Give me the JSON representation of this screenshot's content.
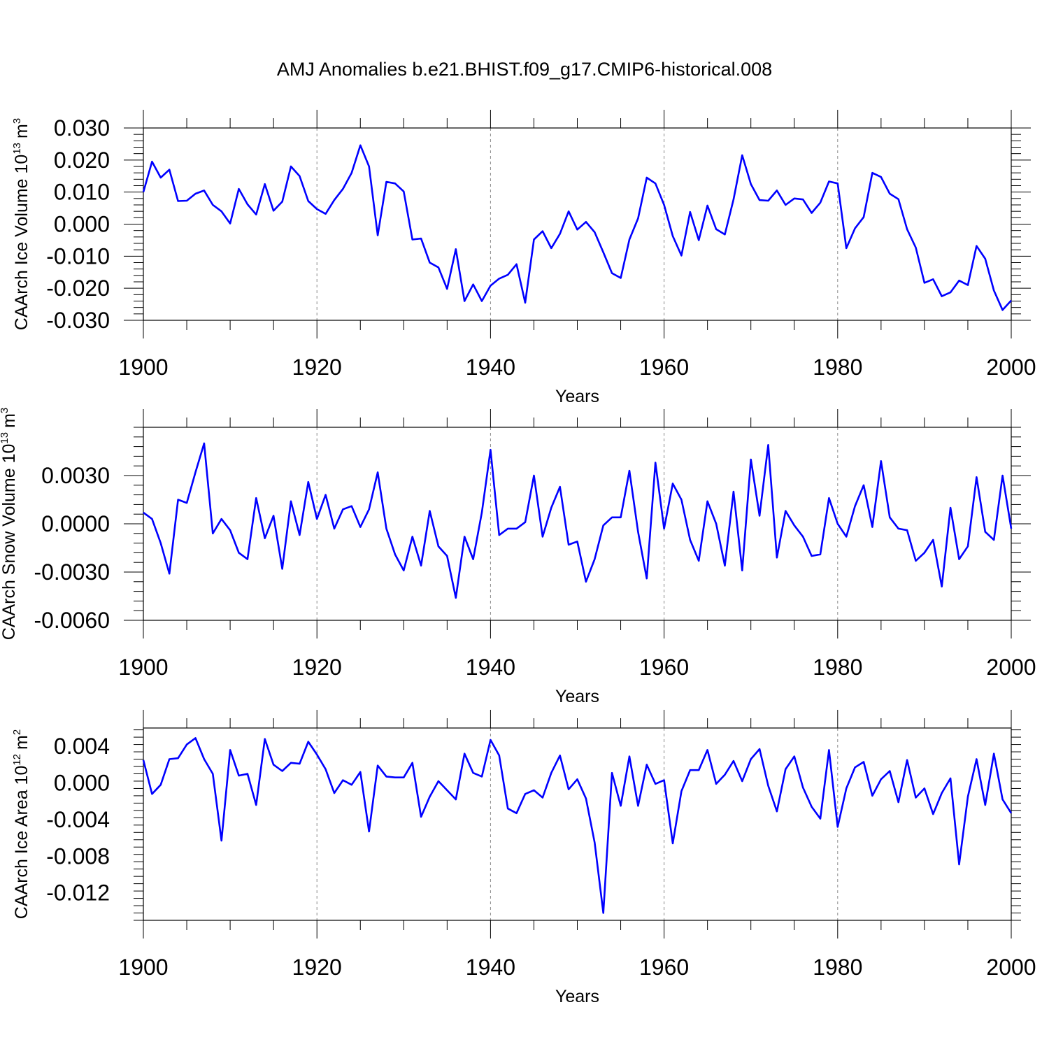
{
  "title": "AMJ Anomalies b.e21.BHIST.f09_g17.CMIP6-historical.008",
  "colors": {
    "series": "#0000ff",
    "axis": "#000000",
    "grid": "#888888"
  },
  "chart_data": [
    {
      "type": "line",
      "ylabel": "CAArch Ice Volume 10",
      "ylabel_sup": "13",
      "ylabel_unit": "m",
      "ylabel_unit_sup": "3",
      "xlabel": "Years",
      "xlim": [
        1900,
        2000
      ],
      "ylim": [
        -0.03,
        0.03
      ],
      "yticks": [
        -0.03,
        -0.02,
        -0.01,
        0.0,
        0.01,
        0.02,
        0.03
      ],
      "ytick_labels": [
        "-0.030",
        "-0.020",
        "-0.010",
        "0.000",
        "0.010",
        "0.020",
        "0.030"
      ],
      "xticks": [
        1900,
        1920,
        1940,
        1960,
        1980,
        2000
      ],
      "xtick_labels": [
        "1900",
        "1920",
        "1940",
        "1960",
        "1980",
        "2000"
      ],
      "grid_x": [
        1920,
        1940,
        1960,
        1980
      ],
      "x_start": 1900,
      "values": [
        0.01,
        0.0195,
        0.0145,
        0.017,
        0.0072,
        0.0073,
        0.0095,
        0.0105,
        0.006,
        0.004,
        0.0002,
        0.011,
        0.0062,
        0.003,
        0.0125,
        0.0042,
        0.007,
        0.018,
        0.015,
        0.0072,
        0.0047,
        0.0032,
        0.0075,
        0.011,
        0.016,
        0.0246,
        0.018,
        -0.0035,
        0.0132,
        0.0127,
        0.0102,
        -0.0048,
        -0.0045,
        -0.012,
        -0.0135,
        -0.0202,
        -0.0078,
        -0.024,
        -0.0188,
        -0.024,
        -0.0192,
        -0.017,
        -0.0158,
        -0.0125,
        -0.0245,
        -0.0048,
        -0.0022,
        -0.0075,
        -0.003,
        0.004,
        -0.0017,
        0.0007,
        -0.0025,
        -0.0088,
        -0.0153,
        -0.0168,
        -0.0048,
        0.0018,
        0.0145,
        0.0127,
        0.006,
        -0.0037,
        -0.0098,
        0.0038,
        -0.005,
        0.0058,
        -0.0016,
        -0.0032,
        0.0077,
        0.0215,
        0.0125,
        0.0075,
        0.0073,
        0.0105,
        0.006,
        0.008,
        0.0077,
        0.0035,
        0.0067,
        0.0133,
        0.0127,
        -0.0075,
        -0.0013,
        0.0022,
        0.016,
        0.0147,
        0.0095,
        0.0078,
        -0.0016,
        -0.0073,
        -0.0183,
        -0.0172,
        -0.0225,
        -0.0213,
        -0.0176,
        -0.019,
        -0.0068,
        -0.0108,
        -0.0207,
        -0.0268,
        -0.0238
      ]
    },
    {
      "type": "line",
      "ylabel": "CAArch Snow Volume 10",
      "ylabel_sup": "13",
      "ylabel_unit": "m",
      "ylabel_unit_sup": "3",
      "xlabel": "Years",
      "xlim": [
        1900,
        2000
      ],
      "ylim": [
        -0.006,
        0.006
      ],
      "yticks": [
        -0.006,
        -0.003,
        0.0,
        0.003
      ],
      "ytick_labels": [
        "-0.0060",
        "-0.0030",
        "0.0000",
        "0.0030"
      ],
      "xticks": [
        1900,
        1920,
        1940,
        1960,
        1980,
        2000
      ],
      "xtick_labels": [
        "1900",
        "1920",
        "1940",
        "1960",
        "1980",
        "2000"
      ],
      "grid_x": [
        1920,
        1940,
        1960,
        1980
      ],
      "x_start": 1900,
      "values": [
        0.0007,
        0.0003,
        -0.0012,
        -0.0031,
        0.0015,
        0.0013,
        0.0032,
        0.005,
        -0.0006,
        0.0003,
        -0.0004,
        -0.0018,
        -0.0022,
        0.0016,
        -0.0009,
        0.0005,
        -0.0028,
        0.0014,
        -0.0007,
        0.0026,
        0.0003,
        0.0018,
        -0.0003,
        0.0009,
        0.0011,
        -0.0002,
        0.0009,
        0.0032,
        -0.0003,
        -0.0019,
        -0.0029,
        -0.0008,
        -0.0026,
        0.0008,
        -0.0014,
        -0.002,
        -0.0046,
        -0.0008,
        -0.0022,
        0.0007,
        0.0046,
        -0.0007,
        -0.0003,
        -0.0003,
        0.0001,
        0.003,
        -0.0008,
        0.001,
        0.0023,
        -0.0013,
        -0.0011,
        -0.0036,
        -0.0022,
        -0.0001,
        0.0004,
        0.0004,
        0.0033,
        -0.0005,
        -0.0034,
        0.0038,
        -0.0003,
        0.0025,
        0.0015,
        -0.001,
        -0.0023,
        0.0014,
        0.0,
        -0.0026,
        0.002,
        -0.0029,
        0.004,
        0.0005,
        0.0049,
        -0.0021,
        0.0008,
        -0.0001,
        -0.0008,
        -0.002,
        -0.0019,
        0.0016,
        0.0,
        -0.0008,
        0.0011,
        0.0024,
        -0.0002,
        0.0039,
        0.0004,
        -0.0003,
        -0.0004,
        -0.0023,
        -0.0018,
        -0.001,
        -0.0039,
        0.001,
        -0.0022,
        -0.0014,
        0.0029,
        -0.0005,
        -0.001,
        0.003,
        -0.0003
      ]
    },
    {
      "type": "line",
      "ylabel": "CAArch Ice Area 10",
      "ylabel_sup": "12",
      "ylabel_unit": "m",
      "ylabel_unit_sup": "2",
      "xlabel": "Years",
      "xlim": [
        1900,
        2000
      ],
      "ylim": [
        -0.015,
        0.006
      ],
      "yticks": [
        -0.012,
        -0.008,
        -0.004,
        0.0,
        0.004
      ],
      "ytick_labels": [
        "-0.012",
        "-0.008",
        "-0.004",
        "0.000",
        "0.004"
      ],
      "xticks": [
        1900,
        1920,
        1940,
        1960,
        1980,
        2000
      ],
      "xtick_labels": [
        "1900",
        "1920",
        "1940",
        "1960",
        "1980",
        "2000"
      ],
      "grid_x": [
        1920,
        1940,
        1960,
        1980
      ],
      "x_start": 1900,
      "values": [
        0.0025,
        -0.0012,
        -0.0002,
        0.0026,
        0.0027,
        0.0042,
        0.0049,
        0.0026,
        0.001,
        -0.0063,
        0.0036,
        0.0008,
        0.001,
        -0.0024,
        0.0048,
        0.002,
        0.0013,
        0.0022,
        0.0021,
        0.0045,
        0.0031,
        0.0015,
        -0.0011,
        0.0003,
        -0.0002,
        0.0012,
        -0.0053,
        0.0019,
        0.0007,
        0.0006,
        0.0006,
        0.0022,
        -0.0037,
        -0.0015,
        0.0002,
        -0.0008,
        -0.0018,
        0.0032,
        0.0011,
        0.0007,
        0.0047,
        0.003,
        -0.0028,
        -0.0033,
        -0.0012,
        -0.0008,
        -0.0016,
        0.0011,
        0.003,
        -0.0007,
        0.0004,
        -0.0017,
        -0.0065,
        -0.0142,
        0.0011,
        -0.0025,
        0.0029,
        -0.0025,
        0.002,
        -0.0001,
        0.0003,
        -0.0066,
        -0.0009,
        0.0014,
        0.0014,
        0.0036,
        -0.0001,
        0.0009,
        0.0024,
        0.0002,
        0.0026,
        0.0037,
        -0.0003,
        -0.0031,
        0.0015,
        0.0029,
        -0.0005,
        -0.0026,
        -0.0039,
        0.0036,
        -0.0048,
        -0.0006,
        0.0017,
        0.0023,
        -0.0014,
        0.0004,
        0.0013,
        -0.0021,
        0.0025,
        -0.0016,
        -0.0006,
        -0.0034,
        -0.0011,
        0.0005,
        -0.0089,
        -0.0015,
        0.0026,
        -0.0024,
        0.0032,
        -0.0018,
        -0.0033
      ]
    }
  ]
}
